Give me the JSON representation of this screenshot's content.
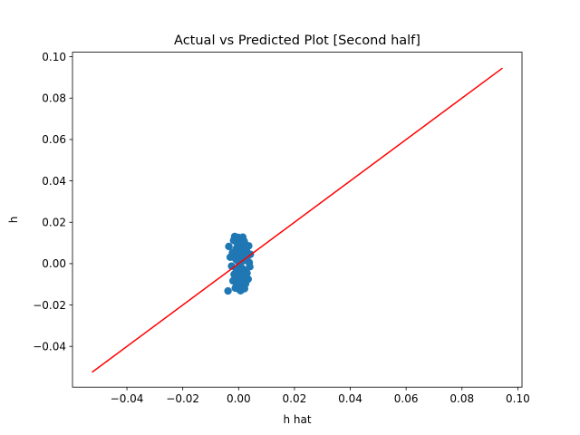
{
  "chart_data": {
    "type": "scatter",
    "title": "Actual vs Predicted Plot [Second half]",
    "xlabel": "h hat",
    "ylabel": "h",
    "xlim": [
      -0.0595,
      0.1015
    ],
    "ylim": [
      -0.0597,
      0.1022
    ],
    "x_ticks": [
      -0.04,
      -0.02,
      0.0,
      0.02,
      0.04,
      0.06,
      0.08,
      0.1
    ],
    "x_tick_labels": [
      "−0.04",
      "−0.02",
      "0.00",
      "0.02",
      "0.04",
      "0.06",
      "0.08",
      "0.10"
    ],
    "y_ticks": [
      -0.04,
      -0.02,
      0.0,
      0.02,
      0.04,
      0.06,
      0.08,
      0.1
    ],
    "y_tick_labels": [
      "−0.04",
      "−0.02",
      "0.00",
      "0.02",
      "0.04",
      "0.06",
      "0.08",
      "0.10"
    ],
    "grid": false,
    "series": [
      {
        "kind": "scatter",
        "color": "#1f77b4",
        "points": [
          [
            -0.0038,
            -0.0132
          ],
          [
            -0.0035,
            0.0083
          ],
          [
            -0.003,
            0.0031
          ],
          [
            -0.0025,
            -0.0012
          ],
          [
            -0.0022,
            0.0053
          ],
          [
            -0.002,
            -0.0083
          ],
          [
            -0.0018,
            0.0112
          ],
          [
            -0.0016,
            -0.0052
          ],
          [
            -0.0014,
            0.0131
          ],
          [
            -0.0012,
            -0.0118
          ],
          [
            -0.001,
            0.0021
          ],
          [
            -0.0009,
            0.0071
          ],
          [
            -0.0008,
            -0.0031
          ],
          [
            -0.0007,
            -0.0101
          ],
          [
            -0.0006,
            0.0101
          ],
          [
            -0.0005,
            0.0043
          ],
          [
            -0.0004,
            -0.0064
          ],
          [
            -0.0003,
            0.0012
          ],
          [
            -0.0002,
            0.0127
          ],
          [
            -0.0001,
            -0.0122
          ],
          [
            0.0,
            0.0058
          ],
          [
            0.0001,
            -0.0019
          ],
          [
            0.0002,
            0.0089
          ],
          [
            0.0003,
            -0.0091
          ],
          [
            0.0004,
            0.0029
          ],
          [
            0.0005,
            -0.0042
          ],
          [
            0.0006,
            0.0118
          ],
          [
            0.0007,
            -0.0131
          ],
          [
            0.0008,
            0.0067
          ],
          [
            0.0009,
            -0.0072
          ],
          [
            0.001,
            0.0009
          ],
          [
            0.0011,
            0.0097
          ],
          [
            0.0012,
            -0.0108
          ],
          [
            0.0013,
            0.0041
          ],
          [
            0.0014,
            -0.0024
          ],
          [
            0.0015,
            0.0128
          ],
          [
            0.0016,
            -0.0058
          ],
          [
            0.0017,
            0.0076
          ],
          [
            0.0018,
            -0.0088
          ],
          [
            0.0019,
            0.0016
          ],
          [
            0.002,
            0.0108
          ],
          [
            0.0021,
            -0.0121
          ],
          [
            0.0022,
            0.0051
          ],
          [
            0.0023,
            -0.0035
          ],
          [
            0.0024,
            0.0093
          ],
          [
            0.0025,
            -0.0097
          ],
          [
            0.0026,
            0.0024
          ],
          [
            0.0028,
            0.0062
          ],
          [
            0.003,
            -0.0046
          ],
          [
            0.0032,
            0.0035
          ],
          [
            0.0034,
            -0.0075
          ],
          [
            0.0036,
            0.0086
          ],
          [
            0.0038,
            0.0005
          ],
          [
            0.004,
            -0.0015
          ],
          [
            0.0042,
            0.0045
          ]
        ]
      },
      {
        "kind": "line",
        "color": "#ff0000",
        "points": [
          [
            -0.0525,
            -0.0525
          ],
          [
            0.0945,
            0.0945
          ]
        ]
      }
    ]
  }
}
